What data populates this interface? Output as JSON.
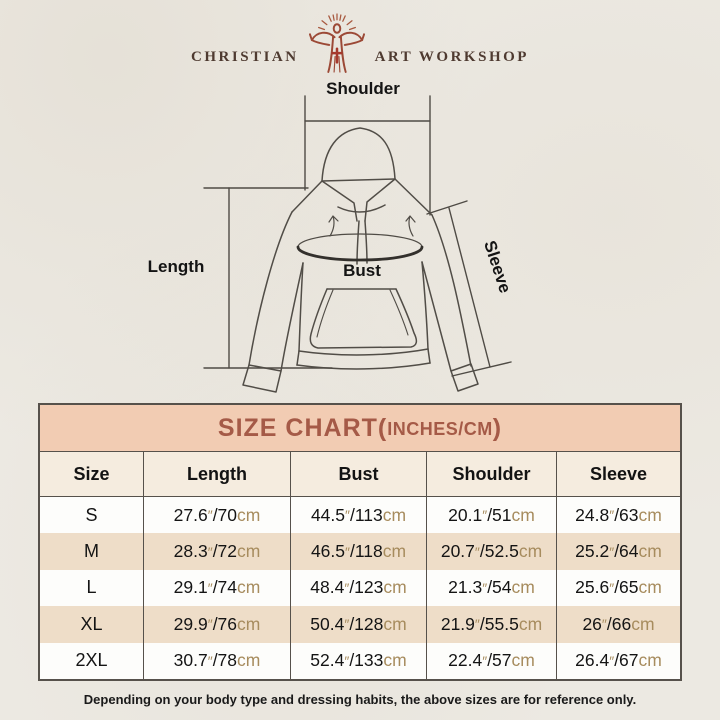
{
  "brand": {
    "name_left": "CHRISTIAN",
    "name_right": "ART WORKSHOP"
  },
  "diagram": {
    "labels": {
      "shoulder": "Shoulder",
      "length": "Length",
      "bust": "Bust",
      "sleeve": "Sleeve"
    }
  },
  "size_chart": {
    "title_prefix": "SIZE CHART(",
    "title_units": "INCHES/CM",
    "title_suffix": ")",
    "columns": [
      "Size",
      "Length",
      "Bust",
      "Shoulder",
      "Sleeve"
    ],
    "unit_inch_mark": "″",
    "unit_cm": "cm",
    "separator": "/",
    "rows": [
      {
        "size": "S",
        "measurements": [
          {
            "in": "27.6",
            "cm": "70"
          },
          {
            "in": "44.5",
            "cm": "113"
          },
          {
            "in": "20.1",
            "cm": "51"
          },
          {
            "in": "24.8",
            "cm": "63"
          }
        ]
      },
      {
        "size": "M",
        "measurements": [
          {
            "in": "28.3",
            "cm": "72"
          },
          {
            "in": "46.5",
            "cm": "118"
          },
          {
            "in": "20.7",
            "cm": "52.5"
          },
          {
            "in": "25.2",
            "cm": "64"
          }
        ]
      },
      {
        "size": "L",
        "measurements": [
          {
            "in": "29.1",
            "cm": "74"
          },
          {
            "in": "48.4",
            "cm": "123"
          },
          {
            "in": "21.3",
            "cm": "54"
          },
          {
            "in": "25.6",
            "cm": "65"
          }
        ]
      },
      {
        "size": "XL",
        "measurements": [
          {
            "in": "29.9",
            "cm": "76"
          },
          {
            "in": "50.4",
            "cm": "128"
          },
          {
            "in": "21.9",
            "cm": "55.5"
          },
          {
            "in": "26",
            "cm": "66"
          }
        ]
      },
      {
        "size": "2XL",
        "measurements": [
          {
            "in": "30.7",
            "cm": "78"
          },
          {
            "in": "52.4",
            "cm": "133"
          },
          {
            "in": "22.4",
            "cm": "57"
          },
          {
            "in": "26.4",
            "cm": "67"
          }
        ]
      }
    ]
  },
  "footer": {
    "note": "Depending on your body type and dressing habits, the above sizes are for reference only."
  },
  "colors": {
    "page_background": "#ece9e2",
    "title_band_background": "#f2ccb3",
    "title_text": "#a55a47",
    "header_row_background": "#f5ecdf",
    "alt_row_background": "#eeddc8",
    "row_background": "#fdfdfb",
    "table_border": "#56514b",
    "unit_text": "#a78c5e",
    "body_text": "#141414",
    "logo_text": "#4e3a30",
    "logo_mark": "#9c4936"
  },
  "chart_data": {
    "type": "table",
    "title": "SIZE CHART(INCHES/CM)",
    "columns": [
      "Size",
      "Length",
      "Bust",
      "Shoulder",
      "Sleeve"
    ],
    "rows": [
      [
        "S",
        "27.6″/70cm",
        "44.5″/113cm",
        "20.1″/51cm",
        "24.8″/63cm"
      ],
      [
        "M",
        "28.3″/72cm",
        "46.5″/118cm",
        "20.7″/52.5cm",
        "25.2″/64cm"
      ],
      [
        "L",
        "29.1″/74cm",
        "48.4″/123cm",
        "21.3″/54cm",
        "25.6″/65cm"
      ],
      [
        "XL",
        "29.9″/76cm",
        "50.4″/128cm",
        "21.9″/55.5cm",
        "26″/66cm"
      ],
      [
        "2XL",
        "30.7″/78cm",
        "52.4″/133cm",
        "22.4″/57cm",
        "26.4″/67cm"
      ]
    ]
  }
}
